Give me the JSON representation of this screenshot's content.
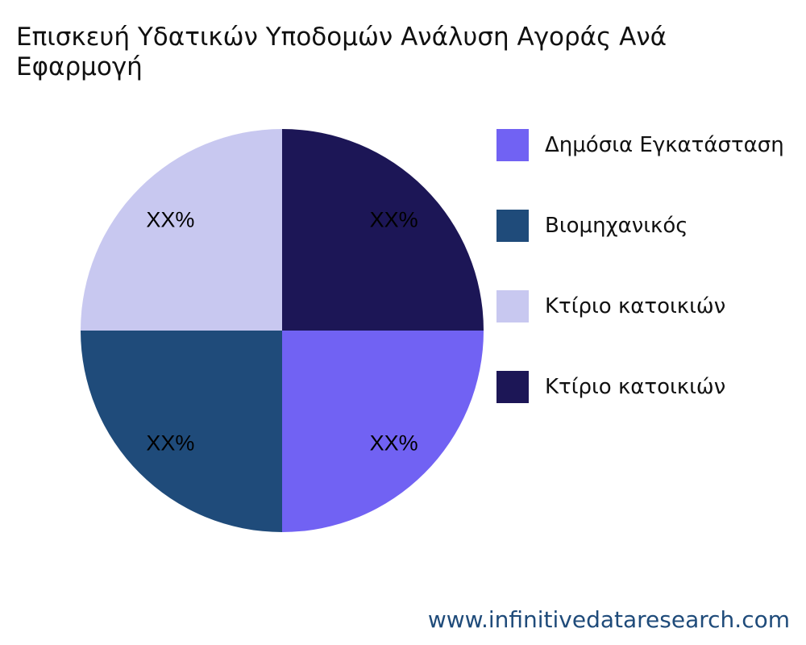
{
  "chart_data": {
    "type": "pie",
    "title": "Επισκευή Υδατικών Υποδομών Ανάλυση Αγοράς Ανά Εφαρμογή",
    "slices": [
      {
        "label": "Δημόσια Εγκατάσταση",
        "value": 25,
        "display": "XX%",
        "color": "#7162f3"
      },
      {
        "label": "Βιομηχανικός",
        "value": 25,
        "display": "XX%",
        "color": "#1f4b7a"
      },
      {
        "label": "Κτίριο κατοικιών",
        "value": 25,
        "display": "XX%",
        "color": "#c8c8f0"
      },
      {
        "label": "Κτίριο κατοικιών",
        "value": 25,
        "display": "XX%",
        "color": "#1c1656"
      }
    ],
    "legend_position": "right"
  },
  "watermark": "www.infinitivedataresearch.com"
}
